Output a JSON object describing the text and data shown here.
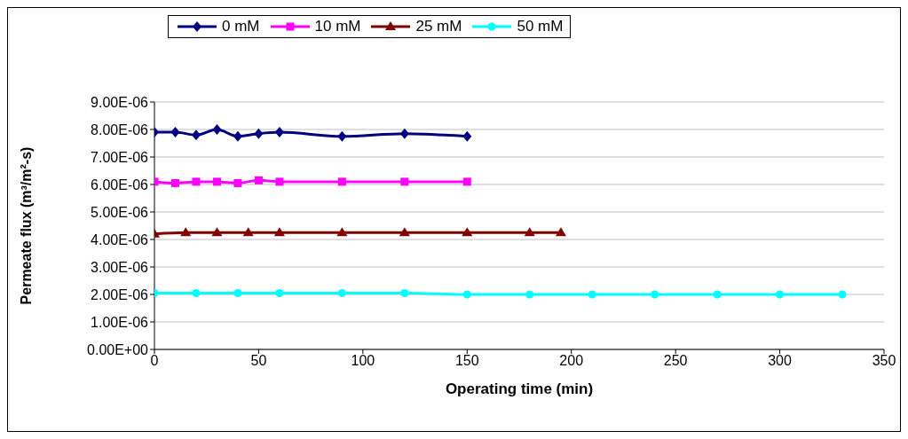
{
  "chart_data": {
    "type": "line",
    "xlabel": "Operating time (min)",
    "ylabel": "Permeate flux (m³/m²-s)",
    "xlim": [
      0,
      350
    ],
    "xticks": [
      0,
      50,
      100,
      150,
      200,
      250,
      300,
      350
    ],
    "ylim": [
      0,
      9e-06
    ],
    "yticks": [
      {
        "value": 0,
        "label": "0.00E+00"
      },
      {
        "value": 1e-06,
        "label": "1.00E-06"
      },
      {
        "value": 2e-06,
        "label": "2.00E-06"
      },
      {
        "value": 3e-06,
        "label": "3.00E-06"
      },
      {
        "value": 4e-06,
        "label": "4.00E-06"
      },
      {
        "value": 5e-06,
        "label": "5.00E-06"
      },
      {
        "value": 6e-06,
        "label": "6.00E-06"
      },
      {
        "value": 7e-06,
        "label": "7.00E-06"
      },
      {
        "value": 8e-06,
        "label": "8.00E-06"
      },
      {
        "value": 9e-06,
        "label": "9.00E-06"
      }
    ],
    "grid": "y",
    "legend": "top",
    "series": [
      {
        "name": "0 mM",
        "color": "#000080",
        "marker": "diamond",
        "x": [
          0,
          10,
          20,
          30,
          40,
          50,
          60,
          90,
          120,
          150
        ],
        "values": [
          7.9e-06,
          7.9e-06,
          7.8e-06,
          8e-06,
          7.75e-06,
          7.85e-06,
          7.9e-06,
          7.75e-06,
          7.85e-06,
          7.75e-06
        ]
      },
      {
        "name": "10 mM",
        "color": "#ff00ff",
        "marker": "square",
        "x": [
          0,
          10,
          20,
          30,
          40,
          50,
          60,
          90,
          120,
          150
        ],
        "values": [
          6.1e-06,
          6.05e-06,
          6.1e-06,
          6.1e-06,
          6.05e-06,
          6.15e-06,
          6.1e-06,
          6.1e-06,
          6.1e-06,
          6.1e-06
        ]
      },
      {
        "name": "25 mM",
        "color": "#800000",
        "marker": "triangle",
        "x": [
          0,
          15,
          30,
          45,
          60,
          90,
          120,
          150,
          180,
          195
        ],
        "values": [
          4.2e-06,
          4.25e-06,
          4.25e-06,
          4.25e-06,
          4.25e-06,
          4.25e-06,
          4.25e-06,
          4.25e-06,
          4.25e-06,
          4.25e-06
        ]
      },
      {
        "name": "50 mM",
        "color": "#00ffff",
        "marker": "circle",
        "x": [
          0,
          20,
          40,
          60,
          90,
          120,
          150,
          180,
          210,
          240,
          270,
          300,
          330
        ],
        "values": [
          2.05e-06,
          2.05e-06,
          2.05e-06,
          2.05e-06,
          2.05e-06,
          2.05e-06,
          2e-06,
          2e-06,
          2e-06,
          2e-06,
          2e-06,
          2e-06,
          2e-06
        ]
      }
    ]
  }
}
